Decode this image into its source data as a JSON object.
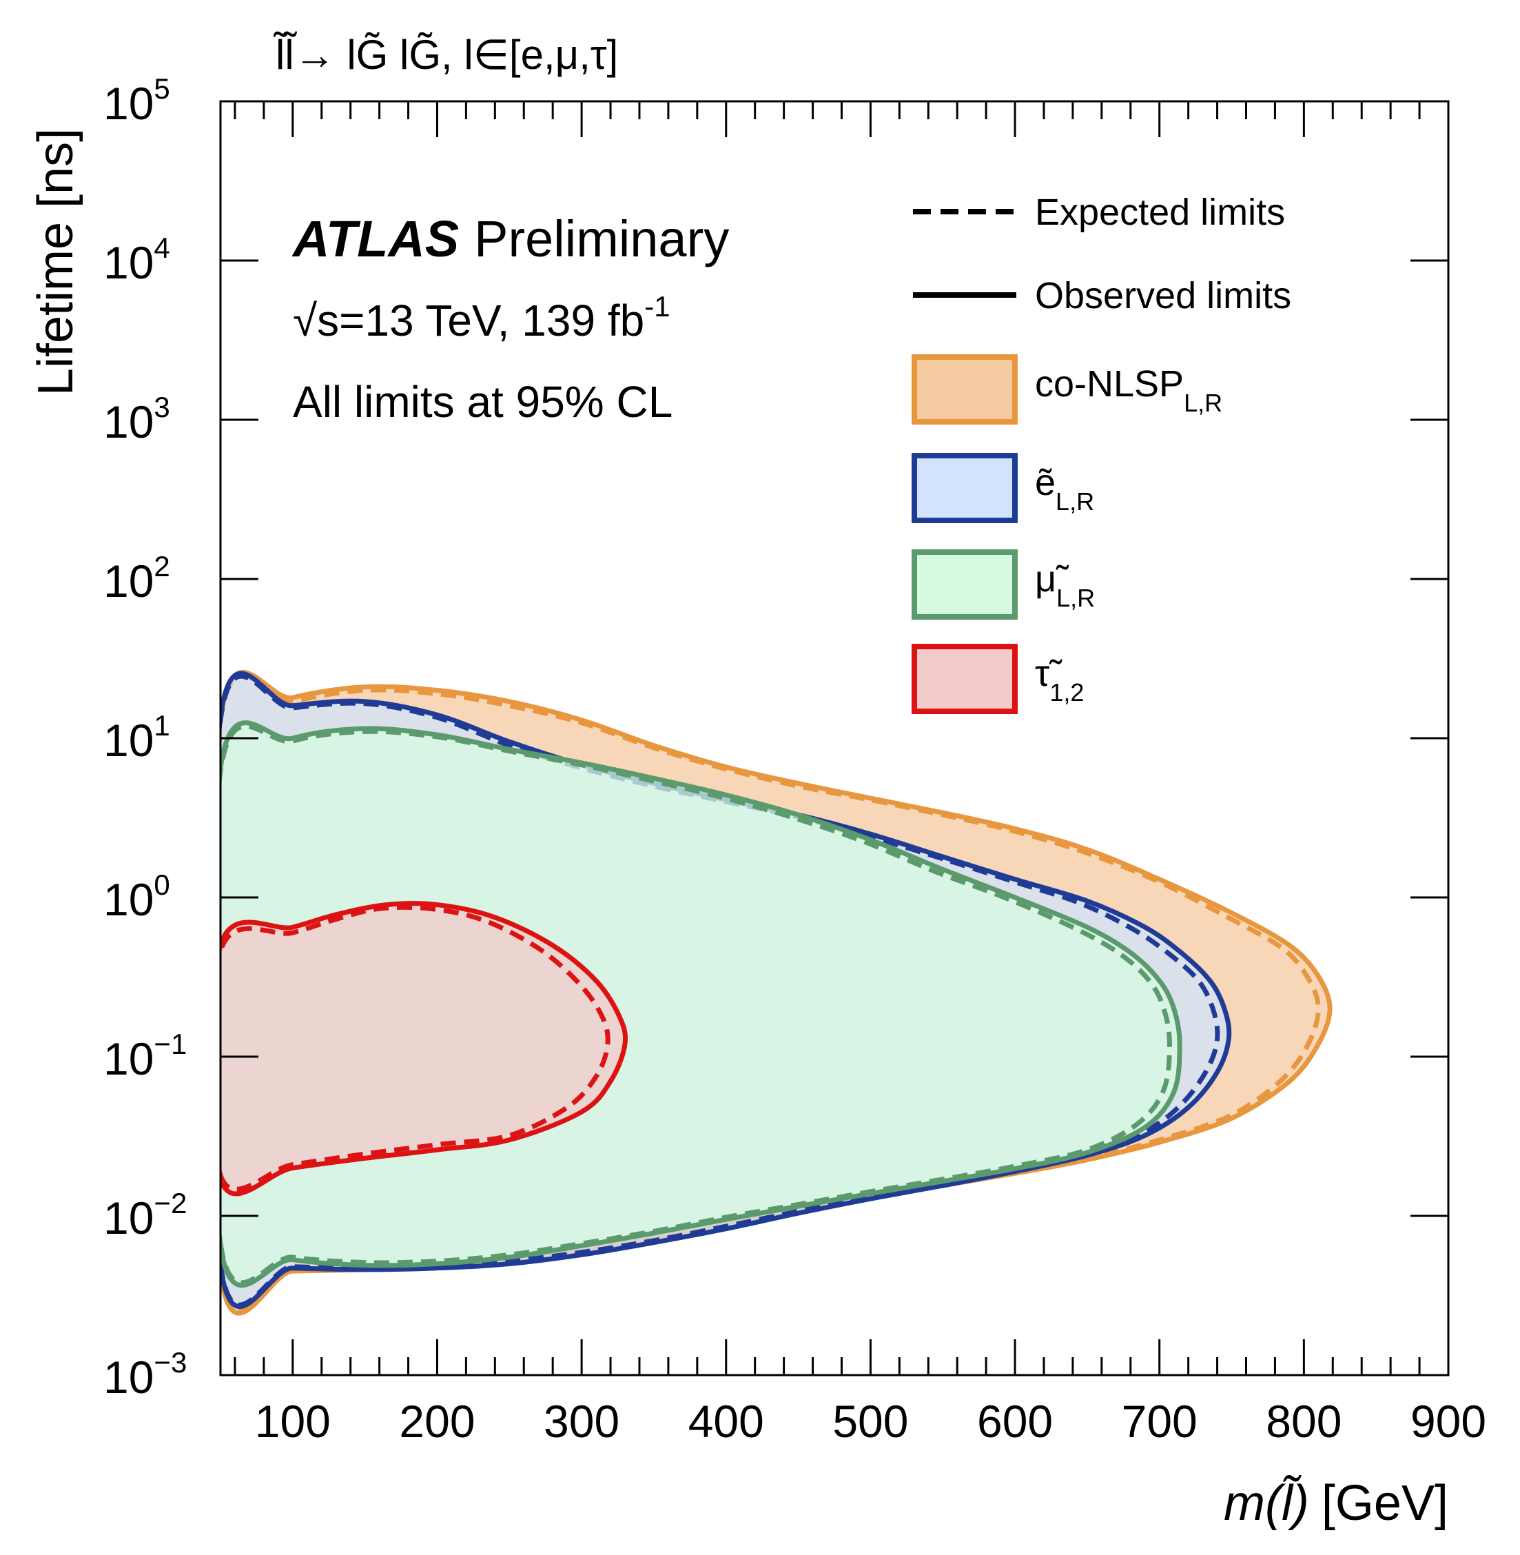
{
  "chart_data": {
    "type": "area",
    "title": "l̃l̃→ lG̃ lG̃, l∈[e,μ,τ]",
    "xlabel_var": "m(l̃)",
    "xlabel_unit": "[GeV]",
    "ylabel": "Lifetime [ns]",
    "xlim": [
      50,
      900
    ],
    "ylim": [
      0.001,
      100000
    ],
    "yscale": "log",
    "x_ticks": [
      100,
      200,
      300,
      400,
      500,
      600,
      700,
      800,
      900
    ],
    "y_ticks": [
      {
        "base": "10",
        "exp": "−3",
        "value": 0.001
      },
      {
        "base": "10",
        "exp": "−2",
        "value": 0.01
      },
      {
        "base": "10",
        "exp": "−1",
        "value": 0.1
      },
      {
        "base": "10",
        "exp": "0",
        "value": 1
      },
      {
        "base": "10",
        "exp": "1",
        "value": 10
      },
      {
        "base": "10",
        "exp": "2",
        "value": 100
      },
      {
        "base": "10",
        "exp": "3",
        "value": 1000
      },
      {
        "base": "10",
        "exp": "4",
        "value": 10000
      },
      {
        "base": "10",
        "exp": "5",
        "value": 100000
      }
    ],
    "atlas_label": "ATLAS",
    "atlas_sub": "Preliminary",
    "energy_label": "√s=13 TeV, 139 fb",
    "lumi_exp": "-1",
    "cl_label": "All limits at 95% CL",
    "legend": {
      "expected": "Expected limits",
      "observed": "Observed limits",
      "entries": [
        {
          "key": "conlsp",
          "label": "co-NLSP",
          "sub": "L,R",
          "fill": "#f5caa0",
          "stroke": "#e8973e"
        },
        {
          "key": "selectron",
          "label": "ẽ",
          "sub": "L,R",
          "fill": "#d2e4fb",
          "stroke": "#1f3b96"
        },
        {
          "key": "smuon",
          "label": "μ̃",
          "sub": "L,R",
          "fill": "#d6f9e2",
          "stroke": "#5b9a6c"
        },
        {
          "key": "stau",
          "label": "τ̃",
          "sub": "1,2",
          "fill": "#f3cbcb",
          "stroke": "#dd1212"
        }
      ]
    },
    "series": [
      {
        "key": "conlsp",
        "observed": [
          [
            50,
            0.0044
          ],
          [
            100,
            0.0045
          ],
          [
            150,
            0.0046
          ],
          [
            200,
            0.0048
          ],
          [
            250,
            0.0053
          ],
          [
            300,
            0.0061
          ],
          [
            350,
            0.0072
          ],
          [
            400,
            0.0088
          ],
          [
            450,
            0.0108
          ],
          [
            500,
            0.013
          ],
          [
            550,
            0.0155
          ],
          [
            600,
            0.0185
          ],
          [
            650,
            0.0225
          ],
          [
            700,
            0.029
          ],
          [
            750,
            0.041
          ],
          [
            790,
            0.07
          ],
          [
            810,
            0.12
          ],
          [
            818,
            0.2
          ],
          [
            810,
            0.32
          ],
          [
            790,
            0.5
          ],
          [
            750,
            0.8
          ],
          [
            700,
            1.3
          ],
          [
            650,
            2.0
          ],
          [
            600,
            2.7
          ],
          [
            550,
            3.4
          ],
          [
            500,
            4.2
          ],
          [
            450,
            5.2
          ],
          [
            400,
            6.6
          ],
          [
            350,
            9.0
          ],
          [
            300,
            13
          ],
          [
            250,
            17
          ],
          [
            200,
            20
          ],
          [
            150,
            21
          ],
          [
            100,
            18
          ],
          [
            50,
            13
          ]
        ],
        "expected": [
          [
            50,
            0.0046
          ],
          [
            100,
            0.0047
          ],
          [
            150,
            0.0048
          ],
          [
            200,
            0.005
          ],
          [
            250,
            0.0055
          ],
          [
            300,
            0.0063
          ],
          [
            350,
            0.0075
          ],
          [
            400,
            0.0091
          ],
          [
            450,
            0.0111
          ],
          [
            500,
            0.0134
          ],
          [
            550,
            0.016
          ],
          [
            600,
            0.019
          ],
          [
            650,
            0.023
          ],
          [
            700,
            0.03
          ],
          [
            750,
            0.043
          ],
          [
            785,
            0.072
          ],
          [
            803,
            0.12
          ],
          [
            810,
            0.2
          ],
          [
            803,
            0.31
          ],
          [
            785,
            0.48
          ],
          [
            745,
            0.77
          ],
          [
            700,
            1.25
          ],
          [
            650,
            1.9
          ],
          [
            600,
            2.6
          ],
          [
            550,
            3.3
          ],
          [
            500,
            4.1
          ],
          [
            450,
            5.0
          ],
          [
            400,
            6.4
          ],
          [
            350,
            8.7
          ],
          [
            300,
            12.5
          ],
          [
            250,
            16
          ],
          [
            200,
            19
          ],
          [
            150,
            20
          ],
          [
            100,
            17
          ],
          [
            50,
            12.5
          ]
        ]
      },
      {
        "key": "selectron",
        "observed": [
          [
            50,
            0.0049
          ],
          [
            100,
            0.0047
          ],
          [
            150,
            0.0046
          ],
          [
            200,
            0.0047
          ],
          [
            250,
            0.005
          ],
          [
            300,
            0.0057
          ],
          [
            350,
            0.0068
          ],
          [
            400,
            0.0083
          ],
          [
            450,
            0.0104
          ],
          [
            500,
            0.0128
          ],
          [
            550,
            0.0155
          ],
          [
            600,
            0.019
          ],
          [
            650,
            0.024
          ],
          [
            690,
            0.032
          ],
          [
            720,
            0.048
          ],
          [
            740,
            0.08
          ],
          [
            748,
            0.13
          ],
          [
            745,
            0.2
          ],
          [
            735,
            0.3
          ],
          [
            715,
            0.45
          ],
          [
            690,
            0.65
          ],
          [
            650,
            0.95
          ],
          [
            600,
            1.3
          ],
          [
            550,
            1.8
          ],
          [
            500,
            2.5
          ],
          [
            450,
            3.3
          ],
          [
            400,
            4.1
          ],
          [
            350,
            5.2
          ],
          [
            300,
            6.8
          ],
          [
            250,
            9.5
          ],
          [
            200,
            14
          ],
          [
            150,
            17
          ],
          [
            100,
            16
          ],
          [
            50,
            13.5
          ]
        ],
        "expected": [
          [
            50,
            0.005
          ],
          [
            100,
            0.0048
          ],
          [
            150,
            0.0047
          ],
          [
            200,
            0.0048
          ],
          [
            250,
            0.0052
          ],
          [
            300,
            0.0059
          ],
          [
            350,
            0.007
          ],
          [
            400,
            0.0086
          ],
          [
            450,
            0.0107
          ],
          [
            500,
            0.0132
          ],
          [
            550,
            0.016
          ],
          [
            600,
            0.0196
          ],
          [
            650,
            0.025
          ],
          [
            690,
            0.034
          ],
          [
            715,
            0.05
          ],
          [
            733,
            0.083
          ],
          [
            740,
            0.13
          ],
          [
            737,
            0.2
          ],
          [
            727,
            0.3
          ],
          [
            707,
            0.44
          ],
          [
            682,
            0.63
          ],
          [
            645,
            0.92
          ],
          [
            600,
            1.25
          ],
          [
            550,
            1.75
          ],
          [
            500,
            2.4
          ],
          [
            450,
            3.2
          ],
          [
            400,
            4.0
          ],
          [
            350,
            5.0
          ],
          [
            300,
            6.5
          ],
          [
            250,
            9.0
          ],
          [
            200,
            13.5
          ],
          [
            150,
            16.5
          ],
          [
            100,
            15.5
          ],
          [
            50,
            13
          ]
        ]
      },
      {
        "key": "smuon",
        "observed": [
          [
            50,
            0.0065
          ],
          [
            100,
            0.0053
          ],
          [
            150,
            0.0049
          ],
          [
            200,
            0.005
          ],
          [
            250,
            0.0055
          ],
          [
            300,
            0.0065
          ],
          [
            350,
            0.0078
          ],
          [
            400,
            0.0095
          ],
          [
            450,
            0.0115
          ],
          [
            500,
            0.0138
          ],
          [
            550,
            0.0165
          ],
          [
            600,
            0.0198
          ],
          [
            650,
            0.025
          ],
          [
            690,
            0.036
          ],
          [
            710,
            0.06
          ],
          [
            714,
            0.12
          ],
          [
            710,
            0.2
          ],
          [
            700,
            0.3
          ],
          [
            680,
            0.45
          ],
          [
            650,
            0.65
          ],
          [
            600,
            1.0
          ],
          [
            550,
            1.5
          ],
          [
            500,
            2.3
          ],
          [
            450,
            3.3
          ],
          [
            400,
            4.4
          ],
          [
            350,
            5.6
          ],
          [
            300,
            7.0
          ],
          [
            250,
            8.5
          ],
          [
            200,
            10.5
          ],
          [
            150,
            11.5
          ],
          [
            100,
            10
          ],
          [
            50,
            6.5
          ]
        ],
        "expected": [
          [
            50,
            0.0067
          ],
          [
            100,
            0.0055
          ],
          [
            150,
            0.0051
          ],
          [
            200,
            0.0052
          ],
          [
            250,
            0.0057
          ],
          [
            300,
            0.0067
          ],
          [
            350,
            0.008
          ],
          [
            400,
            0.0098
          ],
          [
            450,
            0.0118
          ],
          [
            500,
            0.0142
          ],
          [
            550,
            0.017
          ],
          [
            600,
            0.0205
          ],
          [
            650,
            0.026
          ],
          [
            685,
            0.038
          ],
          [
            703,
            0.062
          ],
          [
            707,
            0.12
          ],
          [
            703,
            0.2
          ],
          [
            693,
            0.3
          ],
          [
            673,
            0.44
          ],
          [
            643,
            0.63
          ],
          [
            595,
            0.98
          ],
          [
            545,
            1.45
          ],
          [
            495,
            2.25
          ],
          [
            445,
            3.2
          ],
          [
            395,
            4.3
          ],
          [
            345,
            5.5
          ],
          [
            300,
            6.8
          ],
          [
            250,
            8.3
          ],
          [
            200,
            10.2
          ],
          [
            150,
            11
          ],
          [
            100,
            9.6
          ],
          [
            50,
            6.2
          ]
        ]
      },
      {
        "key": "stau",
        "observed": [
          [
            50,
            0.017
          ],
          [
            100,
            0.02
          ],
          [
            150,
            0.023
          ],
          [
            200,
            0.026
          ],
          [
            250,
            0.03
          ],
          [
            300,
            0.045
          ],
          [
            320,
            0.07
          ],
          [
            330,
            0.12
          ],
          [
            326,
            0.18
          ],
          [
            310,
            0.3
          ],
          [
            280,
            0.5
          ],
          [
            240,
            0.75
          ],
          [
            200,
            0.9
          ],
          [
            165,
            0.9
          ],
          [
            130,
            0.78
          ],
          [
            100,
            0.65
          ],
          [
            50,
            0.5
          ]
        ],
        "expected": [
          [
            50,
            0.018
          ],
          [
            100,
            0.021
          ],
          [
            150,
            0.0245
          ],
          [
            200,
            0.028
          ],
          [
            250,
            0.032
          ],
          [
            290,
            0.048
          ],
          [
            310,
            0.075
          ],
          [
            318,
            0.12
          ],
          [
            314,
            0.18
          ],
          [
            298,
            0.29
          ],
          [
            270,
            0.48
          ],
          [
            232,
            0.72
          ],
          [
            195,
            0.85
          ],
          [
            160,
            0.85
          ],
          [
            130,
            0.73
          ],
          [
            100,
            0.6
          ],
          [
            50,
            0.46
          ]
        ]
      }
    ],
    "grid": false,
    "legend_position": "top-right"
  }
}
